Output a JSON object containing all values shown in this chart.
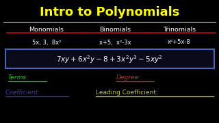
{
  "title": "Intro to Polynomials",
  "title_color": "#FFFF00",
  "title_fontsize": 13,
  "bg_color": "#000000",
  "col1_header": "Monomials",
  "col2_header": "Binomials",
  "col3_header": "Trinomials",
  "col1_examples": "5x, 3,  8x²",
  "col2_examples": "x+5,  x²-3x",
  "col3_examples": "x²+5x-8",
  "terms_label": "Terms",
  "terms_color": "#00DD00",
  "degree_label": "Degree",
  "degree_color": "#DD2222",
  "coeff_label": "Coefficient",
  "coeff_color": "#3333DD",
  "leading_coeff_label": "Leading Coefficient",
  "leading_coeff_color": "#CCCC00",
  "header_underline_color": "#CC0000",
  "divider_color": "#CCCCCC",
  "box_edge_color": "#4466BB",
  "box_face_color": "#0a0a1a",
  "white": "#FFFFFF",
  "yellow": "#FFFF00",
  "expr_fontsize": 7.5,
  "header_fontsize": 6.8,
  "example_fontsize": 6.0,
  "label_fontsize": 6.5
}
